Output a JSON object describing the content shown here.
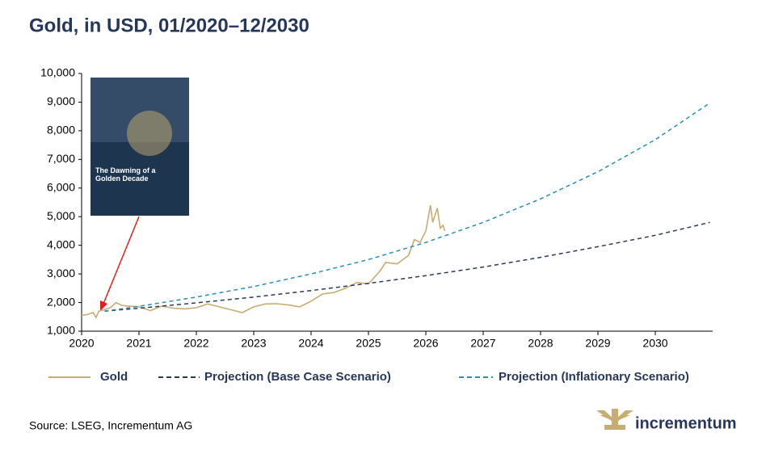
{
  "chart_data": {
    "type": "line",
    "title": "Gold, in USD, 01/2020–12/2030",
    "source": "Source: LSEG, Incrementum AG",
    "logo": "incrementum",
    "inset": {
      "title": "The Dawning of a Golden Decade"
    },
    "xlim": [
      2020,
      2031
    ],
    "xticks": [
      2020,
      2021,
      2022,
      2023,
      2024,
      2025,
      2026,
      2027,
      2028,
      2029,
      2030
    ],
    "ylim": [
      1000,
      10000
    ],
    "yticks": [
      {
        "value": 1000,
        "label": "1,000"
      },
      {
        "value": 2000,
        "label": "2,000"
      },
      {
        "value": 3000,
        "label": "3,000"
      },
      {
        "value": 4000,
        "label": "4,000"
      },
      {
        "value": 5000,
        "label": "5,000"
      },
      {
        "value": 6000,
        "label": "6,000"
      },
      {
        "value": 7000,
        "label": "7,000"
      },
      {
        "value": 8000,
        "label": "8,000"
      },
      {
        "value": 9000,
        "label": "9,000"
      },
      {
        "value": 10000,
        "label": "10,000"
      }
    ],
    "grid": false,
    "series": [
      {
        "name": "Gold",
        "color": "#c8ad72",
        "style": "solid",
        "x": [
          2020.0,
          2020.1,
          2020.2,
          2020.25,
          2020.3,
          2020.4,
          2020.5,
          2020.6,
          2020.7,
          2020.8,
          2021.0,
          2021.2,
          2021.4,
          2021.6,
          2021.8,
          2022.0,
          2022.2,
          2022.4,
          2022.6,
          2022.8,
          2023.0,
          2023.2,
          2023.4,
          2023.6,
          2023.8,
          2024.0,
          2024.2,
          2024.4,
          2024.6,
          2024.8,
          2025.0,
          2025.2,
          2025.3,
          2025.5,
          2025.7,
          2025.8,
          2025.9,
          2026.0,
          2026.08,
          2026.12,
          2026.2,
          2026.25,
          2026.3,
          2026.33
        ],
        "values": [
          1550,
          1580,
          1650,
          1480,
          1700,
          1750,
          1820,
          2000,
          1900,
          1880,
          1850,
          1720,
          1880,
          1800,
          1780,
          1820,
          1950,
          1850,
          1750,
          1650,
          1850,
          1950,
          1960,
          1920,
          1850,
          2050,
          2300,
          2350,
          2500,
          2700,
          2650,
          3100,
          3400,
          3350,
          3650,
          4200,
          4100,
          4500,
          5400,
          4800,
          5300,
          4600,
          4700,
          4500
        ]
      },
      {
        "name": "Projection (Base Case Scenario)",
        "color": "#2b3a5c",
        "style": "dashed",
        "x": [
          2020.4,
          2021,
          2022,
          2023,
          2024,
          2025,
          2026,
          2027,
          2028,
          2029,
          2030,
          2030.95
        ],
        "values": [
          1700,
          1800,
          1990,
          2190,
          2420,
          2670,
          2940,
          3240,
          3580,
          3950,
          4350,
          4800
        ]
      },
      {
        "name": "Projection (Inflationary Scenario)",
        "color": "#2a8fb8",
        "style": "dashed",
        "x": [
          2020.4,
          2021,
          2022,
          2023,
          2024,
          2025,
          2026,
          2027,
          2028,
          2029,
          2030,
          2030.95
        ],
        "values": [
          1700,
          1870,
          2190,
          2560,
          3000,
          3500,
          4100,
          4800,
          5620,
          6570,
          7690,
          8970
        ]
      }
    ]
  }
}
